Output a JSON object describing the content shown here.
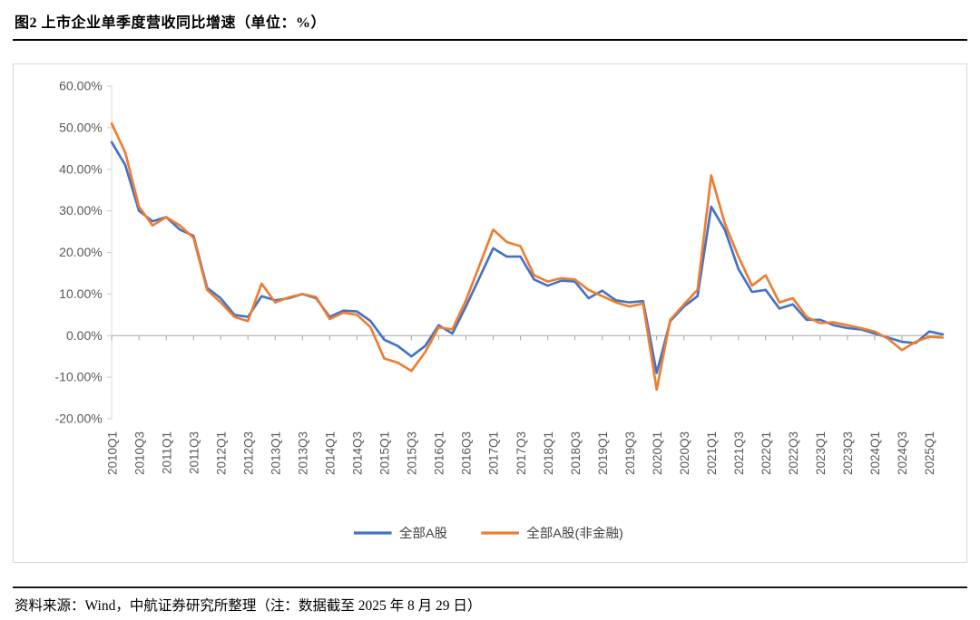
{
  "page": {
    "title": "图2  上市企业单季度营收同比增速（单位：%）",
    "source_note": "资料来源：Wind，中航证券研究所整理（注：数据截至 2025 年 8 月 29 日）"
  },
  "chart_data": {
    "type": "line",
    "title": "图2 上市企业单季度营收同比增速（单位：%）",
    "x": [
      "2010Q1",
      "2010Q2",
      "2010Q3",
      "2010Q4",
      "2011Q1",
      "2011Q2",
      "2011Q3",
      "2011Q4",
      "2012Q1",
      "2012Q2",
      "2012Q3",
      "2012Q4",
      "2013Q1",
      "2013Q2",
      "2013Q3",
      "2013Q4",
      "2014Q1",
      "2014Q2",
      "2014Q3",
      "2014Q4",
      "2015Q1",
      "2015Q2",
      "2015Q3",
      "2015Q4",
      "2016Q1",
      "2016Q2",
      "2016Q3",
      "2016Q4",
      "2017Q1",
      "2017Q2",
      "2017Q3",
      "2017Q4",
      "2018Q1",
      "2018Q2",
      "2018Q3",
      "2018Q4",
      "2019Q1",
      "2019Q2",
      "2019Q3",
      "2019Q4",
      "2020Q1",
      "2020Q2",
      "2020Q3",
      "2020Q4",
      "2021Q1",
      "2021Q2",
      "2021Q3",
      "2021Q4",
      "2022Q1",
      "2022Q2",
      "2022Q3",
      "2022Q4",
      "2023Q1",
      "2023Q2",
      "2023Q3",
      "2023Q4",
      "2024Q1",
      "2024Q2",
      "2024Q3",
      "2024Q4",
      "2025Q1",
      "2025Q2"
    ],
    "x_label_every": 2,
    "series": [
      {
        "name": "全部A股",
        "color": "#4472C4",
        "values": [
          46.5,
          41.0,
          30.0,
          27.5,
          28.5,
          25.5,
          24.0,
          11.5,
          9.0,
          5.0,
          4.5,
          9.5,
          8.5,
          9.0,
          10.0,
          9.0,
          4.5,
          6.0,
          5.8,
          3.5,
          -1.0,
          -2.5,
          -5.0,
          -2.5,
          2.5,
          0.5,
          7.0,
          14.0,
          21.0,
          19.0,
          19.0,
          13.5,
          12.0,
          13.2,
          13.0,
          9.0,
          10.8,
          8.5,
          8.0,
          8.3,
          -9.0,
          3.5,
          7.0,
          9.5,
          31.0,
          25.5,
          16.0,
          10.5,
          11.0,
          6.5,
          7.5,
          3.8,
          3.8,
          2.5,
          1.8,
          1.5,
          0.5,
          -0.5,
          -1.5,
          -1.8,
          1.0,
          0.3
        ]
      },
      {
        "name": "全部A股(非金融)",
        "color": "#ED7D31",
        "values": [
          51.0,
          44.0,
          31.0,
          26.5,
          28.5,
          26.5,
          23.5,
          11.0,
          8.0,
          4.5,
          3.5,
          12.5,
          8.0,
          9.2,
          10.0,
          9.3,
          4.0,
          5.5,
          5.0,
          2.0,
          -5.5,
          -6.5,
          -8.5,
          -4.0,
          2.0,
          1.5,
          8.5,
          17.0,
          25.5,
          22.5,
          21.5,
          14.5,
          13.0,
          13.8,
          13.5,
          11.0,
          9.5,
          8.0,
          7.0,
          7.7,
          -13.0,
          3.8,
          7.5,
          11.0,
          38.5,
          27.0,
          19.0,
          12.0,
          14.5,
          8.0,
          9.0,
          4.5,
          3.0,
          3.2,
          2.5,
          1.8,
          1.0,
          -0.8,
          -3.5,
          -1.5,
          -0.3,
          -0.5
        ]
      }
    ],
    "ylim": [
      -20,
      60
    ],
    "y_ticks": [
      "60.00%",
      "50.00%",
      "40.00%",
      "30.00%",
      "20.00%",
      "10.00%",
      "0.00%",
      "-10.00%",
      "-20.00%"
    ],
    "grid": false,
    "legend_position": "bottom"
  }
}
